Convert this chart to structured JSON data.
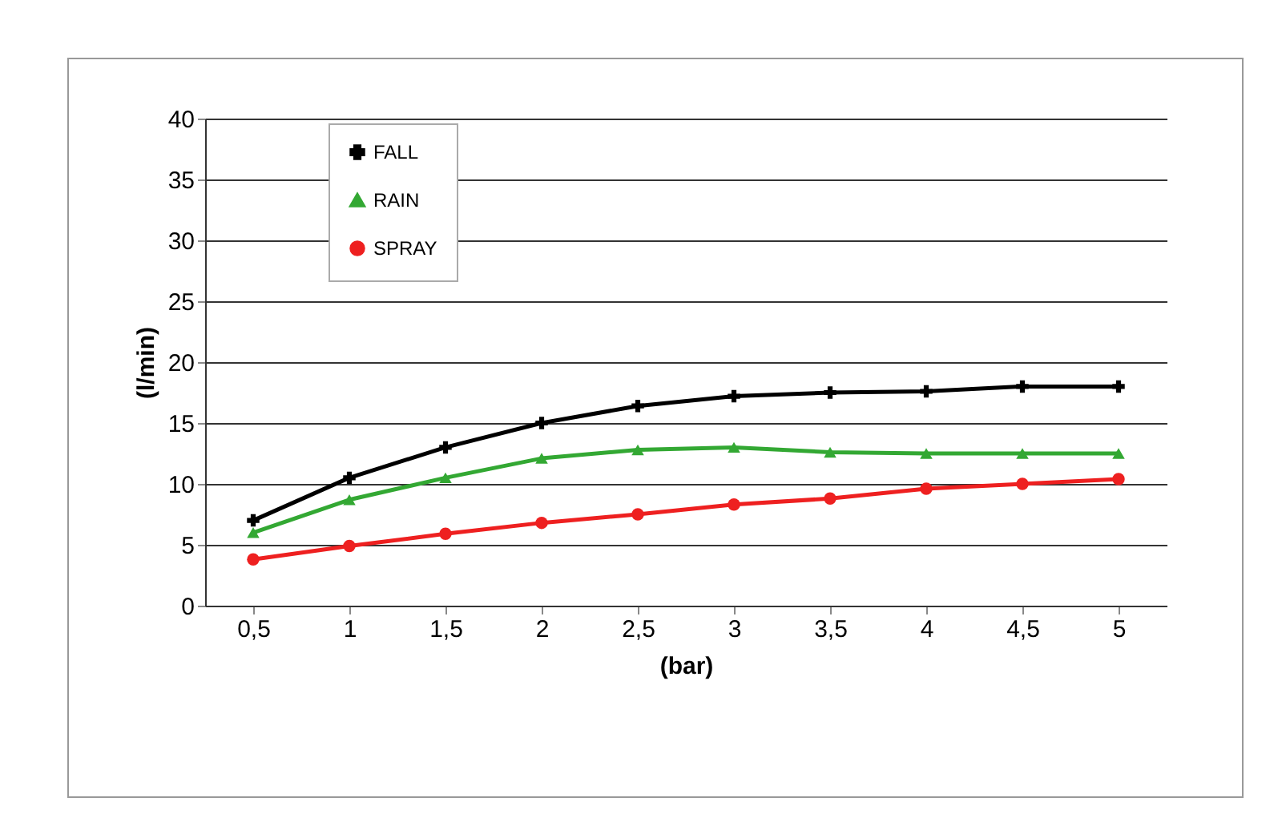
{
  "chart_data": {
    "type": "line",
    "xlabel": "(bar)",
    "ylabel": "(l/min)",
    "categories": [
      "0,5",
      "1",
      "1,5",
      "2",
      "2,5",
      "3",
      "3,5",
      "4",
      "4,5",
      "5"
    ],
    "series": [
      {
        "name": "FALL",
        "color": "#000000",
        "marker": "cross",
        "values": [
          7,
          10.5,
          13,
          15,
          16.4,
          17.2,
          17.5,
          17.6,
          18,
          18
        ]
      },
      {
        "name": "RAIN",
        "color": "#33a833",
        "marker": "triangle",
        "values": [
          6,
          8.7,
          10.5,
          12.1,
          12.8,
          13,
          12.6,
          12.5,
          12.5,
          12.5
        ]
      },
      {
        "name": "SPRAY",
        "color": "#ee2020",
        "marker": "circle",
        "values": [
          3.8,
          4.9,
          5.9,
          6.8,
          7.5,
          8.3,
          8.8,
          9.6,
          10,
          10.4
        ]
      }
    ],
    "ylim": [
      0,
      40
    ],
    "yticks": [
      0,
      5,
      10,
      15,
      20,
      25,
      30,
      35,
      40
    ],
    "grid": "y",
    "legend": "top left",
    "line_style": "solid"
  }
}
